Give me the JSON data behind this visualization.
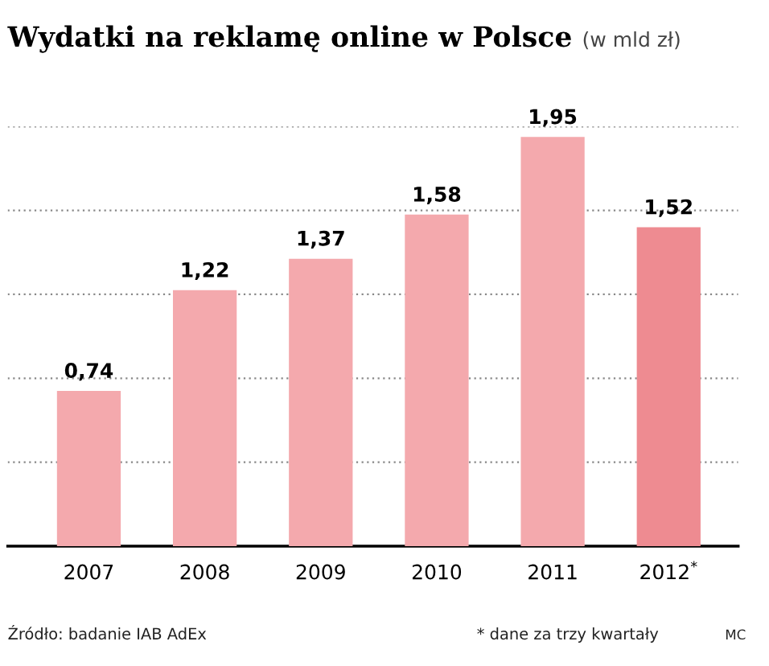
{
  "chart_data": {
    "type": "bar",
    "title": "Wydatki na reklamę online w Polsce",
    "subtitle": "(w mld zł)",
    "categories": [
      "2007",
      "2008",
      "2009",
      "2010",
      "2011",
      "2012$^{*}$"
    ],
    "values": [
      0.74,
      1.22,
      1.37,
      1.58,
      1.95,
      1.52
    ],
    "value_labels": [
      "0,74",
      "1,22",
      "1,37",
      "1,58",
      "1,95",
      "1,52"
    ],
    "colors": [
      "#f4a9ad",
      "#f4a9ad",
      "#f4a9ad",
      "#f4a9ad",
      "#f4a9ad",
      "#ee8b91"
    ],
    "ylim": [
      0,
      2.0
    ],
    "yticks": [
      {
        "value": 0.4,
        "label": null
      },
      {
        "value": 0.8,
        "label": null
      },
      {
        "value": 1.2,
        "label": null
      },
      {
        "value": 1.6,
        "label": null
      },
      {
        "value": 2.0,
        "label": null
      }
    ],
    "grid": "y",
    "tick_labels": "x",
    "annotations": [
      "Źródło: badanie IAB AdEx",
      "* dane za trzy kwartały",
      "MC"
    ]
  }
}
